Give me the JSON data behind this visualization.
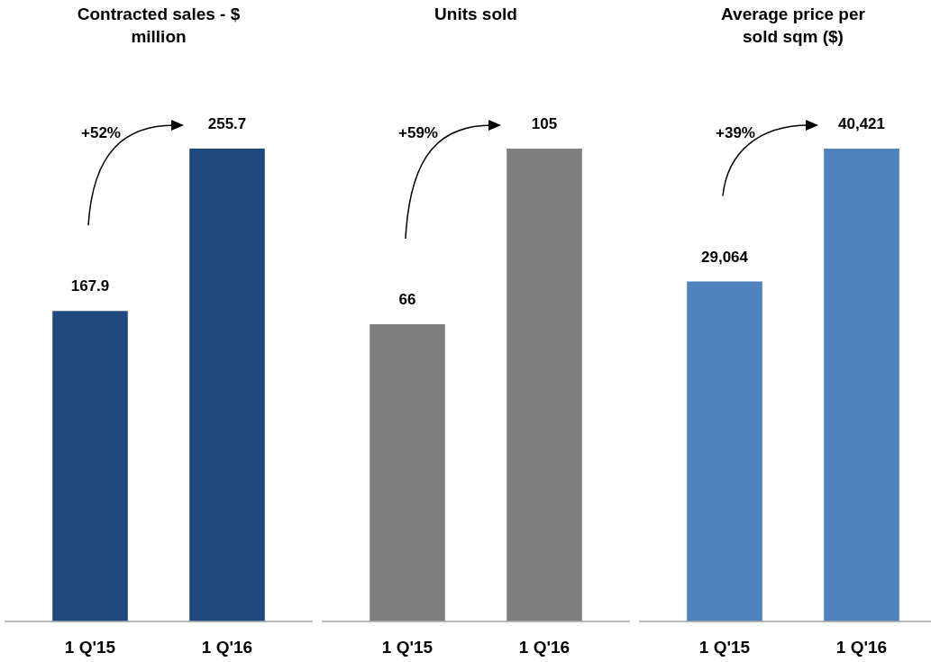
{
  "chart_data": [
    {
      "type": "bar",
      "title": "Contracted sales - $ million",
      "categories": [
        "1 Q'15",
        "1 Q'16"
      ],
      "values": [
        167.9,
        255.7
      ],
      "color": "#1f497d",
      "data_labels": true,
      "annotations": [
        "+52%"
      ]
    },
    {
      "type": "bar",
      "title": "Units sold",
      "categories": [
        "1 Q'15",
        "1 Q'16"
      ],
      "values": [
        66,
        105
      ],
      "color": "#7f7f7f",
      "data_labels": true,
      "annotations": [
        "+59%"
      ]
    },
    {
      "type": "bar",
      "title": "Average price per sold sqm ($)",
      "categories": [
        "1 Q'15",
        "1 Q'16"
      ],
      "values": [
        29064,
        40421
      ],
      "color": "#4f81bd",
      "value_labels": [
        "29,064",
        "40,421"
      ],
      "annotations": [
        "+39%"
      ]
    }
  ]
}
